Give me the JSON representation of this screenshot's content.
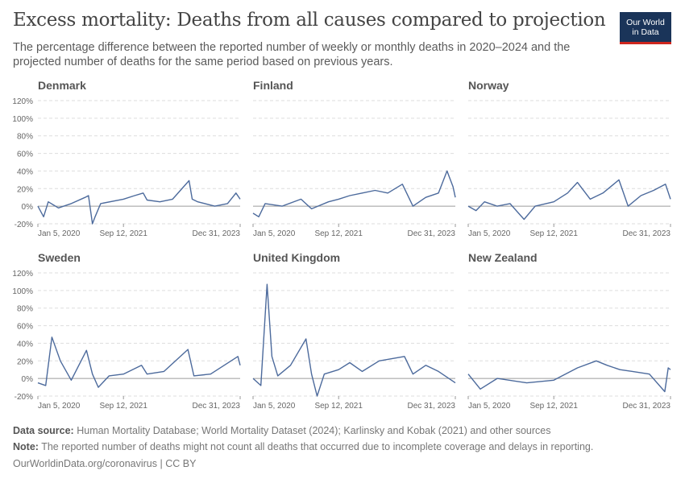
{
  "header": {
    "title": "Excess mortality: Deaths from all causes compared to projection",
    "subtitle": "The percentage difference between the reported number of weekly or monthly deaths in 2020–2024 and the projected number of deaths for the same period based on previous years.",
    "logo_line1": "Our World",
    "logo_line2": "in Data"
  },
  "footer": {
    "source_label": "Data source:",
    "source_text": "Human Mortality Database; World Mortality Dataset (2024); Karlinsky and Kobak (2021) and other sources",
    "note_label": "Note:",
    "note_text": "The reported number of deaths might not count all deaths that occurred due to incomplete coverage and delays in reporting.",
    "license": "OurWorldinData.org/coronavirus | CC BY"
  },
  "colors": {
    "line": "#4c6a9c",
    "grid": "#dddddd",
    "zero": "#9b9b9b"
  },
  "chart_data": {
    "type": "line",
    "y_unit": "%",
    "ylim": [
      -20,
      120
    ],
    "y_ticks": [
      -20,
      0,
      20,
      40,
      60,
      80,
      100,
      120
    ],
    "y_tick_labels": [
      "-20%",
      "0%",
      "20%",
      "40%",
      "60%",
      "80%",
      "100%",
      "120%"
    ],
    "x_ticks": [
      "Jan 5, 2020",
      "Sep 12, 2021",
      "Dec 31, 2023"
    ],
    "x_range": [
      "2020-01-05",
      "2023-12-31"
    ],
    "panels": [
      {
        "country": "Denmark",
        "points": [
          [
            "2020-01-05",
            0
          ],
          [
            "2020-02-15",
            -12
          ],
          [
            "2020-03-20",
            5
          ],
          [
            "2020-06-01",
            -2
          ],
          [
            "2020-09-01",
            3
          ],
          [
            "2020-12-10",
            10
          ],
          [
            "2021-01-03",
            12
          ],
          [
            "2021-02-01",
            -20
          ],
          [
            "2021-02-20",
            -12
          ],
          [
            "2021-04-01",
            3
          ],
          [
            "2021-09-12",
            8
          ],
          [
            "2021-12-01",
            12
          ],
          [
            "2022-02-01",
            15
          ],
          [
            "2022-03-01",
            7
          ],
          [
            "2022-06-01",
            5
          ],
          [
            "2022-09-01",
            8
          ],
          [
            "2022-12-28",
            29
          ],
          [
            "2023-01-20",
            8
          ],
          [
            "2023-03-01",
            5
          ],
          [
            "2023-07-01",
            0
          ],
          [
            "2023-10-01",
            3
          ],
          [
            "2023-12-01",
            15
          ],
          [
            "2023-12-31",
            8
          ]
        ]
      },
      {
        "country": "Finland",
        "points": [
          [
            "2020-01-05",
            -8
          ],
          [
            "2020-02-15",
            -12
          ],
          [
            "2020-04-01",
            3
          ],
          [
            "2020-08-01",
            0
          ],
          [
            "2020-12-15",
            8
          ],
          [
            "2021-03-01",
            -3
          ],
          [
            "2021-07-01",
            5
          ],
          [
            "2021-09-12",
            8
          ],
          [
            "2021-12-01",
            12
          ],
          [
            "2022-03-01",
            15
          ],
          [
            "2022-06-01",
            18
          ],
          [
            "2022-09-01",
            15
          ],
          [
            "2022-12-15",
            25
          ],
          [
            "2023-03-01",
            0
          ],
          [
            "2023-06-01",
            10
          ],
          [
            "2023-09-01",
            15
          ],
          [
            "2023-11-01",
            40
          ],
          [
            "2023-12-15",
            22
          ],
          [
            "2023-12-31",
            10
          ]
        ]
      },
      {
        "country": "Norway",
        "points": [
          [
            "2020-01-05",
            0
          ],
          [
            "2020-03-01",
            -5
          ],
          [
            "2020-05-01",
            5
          ],
          [
            "2020-08-01",
            0
          ],
          [
            "2020-11-01",
            3
          ],
          [
            "2021-02-10",
            -15
          ],
          [
            "2021-05-01",
            0
          ],
          [
            "2021-09-12",
            5
          ],
          [
            "2021-12-20",
            15
          ],
          [
            "2022-03-01",
            27
          ],
          [
            "2022-06-01",
            8
          ],
          [
            "2022-09-01",
            15
          ],
          [
            "2022-12-25",
            30
          ],
          [
            "2023-03-01",
            0
          ],
          [
            "2023-06-01",
            12
          ],
          [
            "2023-09-01",
            18
          ],
          [
            "2023-11-25",
            25
          ],
          [
            "2023-12-31",
            8
          ]
        ]
      },
      {
        "country": "Sweden",
        "points": [
          [
            "2020-01-05",
            -5
          ],
          [
            "2020-03-01",
            -8
          ],
          [
            "2020-04-15",
            47
          ],
          [
            "2020-06-15",
            20
          ],
          [
            "2020-09-01",
            -2
          ],
          [
            "2020-12-20",
            32
          ],
          [
            "2021-02-01",
            5
          ],
          [
            "2021-03-15",
            -10
          ],
          [
            "2021-06-01",
            3
          ],
          [
            "2021-09-12",
            5
          ],
          [
            "2022-01-20",
            15
          ],
          [
            "2022-03-01",
            5
          ],
          [
            "2022-07-01",
            8
          ],
          [
            "2022-12-20",
            33
          ],
          [
            "2023-02-01",
            3
          ],
          [
            "2023-06-01",
            5
          ],
          [
            "2023-12-15",
            25
          ],
          [
            "2023-12-31",
            15
          ]
        ]
      },
      {
        "country": "United Kingdom",
        "points": [
          [
            "2020-01-05",
            0
          ],
          [
            "2020-03-01",
            -8
          ],
          [
            "2020-04-15",
            107
          ],
          [
            "2020-05-20",
            25
          ],
          [
            "2020-07-01",
            3
          ],
          [
            "2020-10-01",
            15
          ],
          [
            "2021-01-20",
            45
          ],
          [
            "2021-03-01",
            5
          ],
          [
            "2021-04-10",
            -20
          ],
          [
            "2021-06-01",
            5
          ],
          [
            "2021-09-12",
            10
          ],
          [
            "2021-12-01",
            18
          ],
          [
            "2022-03-01",
            8
          ],
          [
            "2022-07-01",
            20
          ],
          [
            "2022-12-30",
            25
          ],
          [
            "2023-03-01",
            5
          ],
          [
            "2023-06-01",
            15
          ],
          [
            "2023-09-01",
            8
          ],
          [
            "2023-12-31",
            -5
          ]
        ]
      },
      {
        "country": "New Zealand",
        "points": [
          [
            "2020-01-05",
            5
          ],
          [
            "2020-04-01",
            -12
          ],
          [
            "2020-08-01",
            0
          ],
          [
            "2021-03-01",
            -5
          ],
          [
            "2021-09-12",
            -2
          ],
          [
            "2022-03-01",
            12
          ],
          [
            "2022-07-15",
            20
          ],
          [
            "2022-10-01",
            15
          ],
          [
            "2023-01-01",
            10
          ],
          [
            "2023-04-01",
            8
          ],
          [
            "2023-08-01",
            5
          ],
          [
            "2023-11-20",
            -15
          ],
          [
            "2023-12-15",
            12
          ],
          [
            "2023-12-31",
            10
          ]
        ]
      }
    ]
  }
}
